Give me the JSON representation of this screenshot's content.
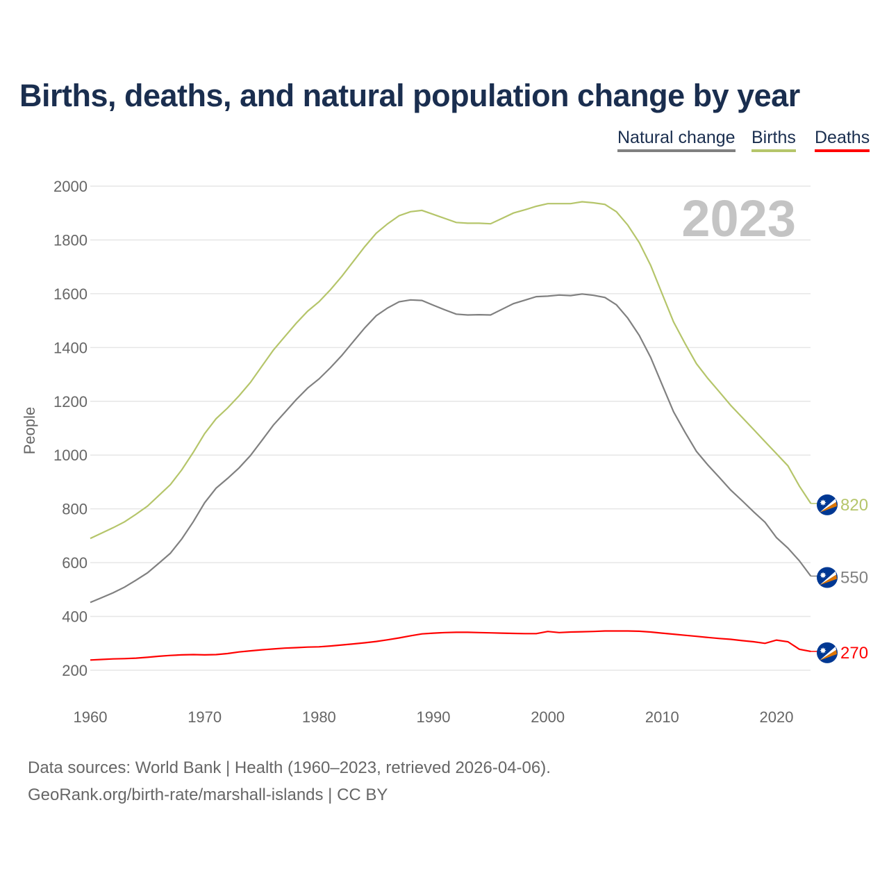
{
  "title": "Births, deaths, and natural population change by year",
  "legend": [
    {
      "label": "Natural change",
      "color": "#808080"
    },
    {
      "label": "Births",
      "color": "#b5c56a"
    },
    {
      "label": "Deaths",
      "color": "#ff0000"
    }
  ],
  "year_label": "2023",
  "footer": {
    "line1": "Data sources: World Bank | Health (1960–2023, retrieved 2026-04-06).",
    "line2": "GeoRank.org/birth-rate/marshall-islands | CC BY"
  },
  "chart_data": {
    "type": "line",
    "title": "Births, deaths, and natural population change by year",
    "xlabel": "",
    "ylabel": "People",
    "xlim": [
      1960,
      2023
    ],
    "ylim": [
      200,
      2000
    ],
    "xticks": [
      1960,
      1970,
      1980,
      1990,
      2000,
      2010,
      2020
    ],
    "yticks": [
      200,
      400,
      600,
      800,
      1000,
      1200,
      1400,
      1600,
      1800,
      2000
    ],
    "grid": true,
    "legend_position": "top-right",
    "x_start": 1960,
    "series": [
      {
        "name": "Births",
        "color": "#b5c56a",
        "end_label": "820",
        "values": [
          690,
          710,
          730,
          752,
          780,
          810,
          850,
          890,
          945,
          1010,
          1080,
          1135,
          1175,
          1220,
          1270,
          1330,
          1390,
          1440,
          1490,
          1535,
          1570,
          1615,
          1665,
          1720,
          1775,
          1825,
          1860,
          1890,
          1905,
          1910,
          1895,
          1880,
          1865,
          1862,
          1862,
          1860,
          1880,
          1900,
          1912,
          1925,
          1935,
          1935,
          1935,
          1942,
          1938,
          1932,
          1905,
          1855,
          1790,
          1705,
          1600,
          1495,
          1415,
          1340,
          1285,
          1235,
          1185,
          1140,
          1095,
          1050,
          1005,
          960,
          885,
          820
        ]
      },
      {
        "name": "Natural change",
        "color": "#808080",
        "end_label": "550",
        "values": [
          452,
          470,
          488,
          509,
          535,
          562,
          598,
          635,
          688,
          752,
          823,
          877,
          913,
          952,
          998,
          1054,
          1111,
          1158,
          1206,
          1249,
          1283,
          1325,
          1371,
          1422,
          1473,
          1518,
          1547,
          1570,
          1577,
          1575,
          1557,
          1540,
          1524,
          1521,
          1522,
          1521,
          1542,
          1563,
          1576,
          1589,
          1591,
          1595,
          1593,
          1599,
          1594,
          1586,
          1559,
          1509,
          1445,
          1363,
          1262,
          1161,
          1085,
          1014,
          963,
          917,
          870,
          830,
          789,
          750,
          693,
          654,
          607,
          550
        ]
      },
      {
        "name": "Deaths",
        "color": "#ff0000",
        "end_label": "270",
        "values": [
          238,
          240,
          242,
          243,
          245,
          248,
          252,
          255,
          257,
          258,
          257,
          258,
          262,
          268,
          272,
          276,
          279,
          282,
          284,
          286,
          287,
          290,
          294,
          298,
          302,
          307,
          313,
          320,
          328,
          335,
          338,
          340,
          341,
          341,
          340,
          339,
          338,
          337,
          336,
          336,
          344,
          340,
          342,
          343,
          344,
          346,
          346,
          346,
          345,
          342,
          338,
          334,
          330,
          326,
          322,
          318,
          315,
          310,
          306,
          300,
          312,
          306,
          278,
          270
        ]
      }
    ]
  }
}
